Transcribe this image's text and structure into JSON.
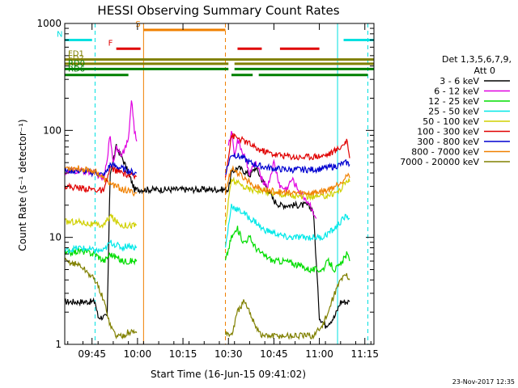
{
  "chart_data": {
    "type": "line",
    "title": "HESSI Observing Summary Count Rates",
    "xlabel": "Start Time (16-Jun-15 09:41:02)",
    "ylabel": "Count Rate (s⁻¹ detector⁻¹)",
    "x_range_minutes": [
      -5,
      97
    ],
    "x_ticks": [
      {
        "min": 4,
        "label": "09:45"
      },
      {
        "min": 19,
        "label": "10:00"
      },
      {
        "min": 34,
        "label": "10:15"
      },
      {
        "min": 49,
        "label": "10:30"
      },
      {
        "min": 64,
        "label": "10:45"
      },
      {
        "min": 79,
        "label": "11:00"
      },
      {
        "min": 94,
        "label": "11:15"
      }
    ],
    "y_scale": "log",
    "ylim": [
      1,
      1000
    ],
    "y_ticks": [
      {
        "v": 1,
        "label": "1"
      },
      {
        "v": 10,
        "label": "10"
      },
      {
        "v": 100,
        "label": "100"
      },
      {
        "v": 1000,
        "label": "1000"
      }
    ],
    "legend_title": [
      "Det 1,3,5,6,7,9,",
      "Att 0"
    ],
    "series": [
      {
        "name": "3 - 6 keV",
        "color": "#000000",
        "points": [
          [
            -5,
            2.5
          ],
          [
            0,
            2.5
          ],
          [
            5,
            2.5
          ],
          [
            6,
            1.8
          ],
          [
            9,
            1.8
          ],
          [
            10,
            40
          ],
          [
            12,
            70
          ],
          [
            14,
            55
          ],
          [
            16,
            40
          ],
          [
            18,
            28
          ],
          [
            19,
            28
          ],
          [
            47,
            28
          ],
          [
            49,
            28
          ],
          [
            50,
            40
          ],
          [
            52,
            45
          ],
          [
            54,
            42
          ],
          [
            56,
            38
          ],
          [
            58,
            45
          ],
          [
            60,
            35
          ],
          [
            62,
            28
          ],
          [
            64,
            22
          ],
          [
            66,
            20
          ],
          [
            70,
            20
          ],
          [
            75,
            20
          ],
          [
            77,
            18
          ],
          [
            79,
            1.8
          ],
          [
            81,
            1.5
          ],
          [
            84,
            1.8
          ],
          [
            86,
            2.5
          ],
          [
            89,
            2.5
          ]
        ]
      },
      {
        "name": "6 - 12 keV",
        "color": "#e000e0",
        "points": [
          [
            -5,
            40
          ],
          [
            0,
            42
          ],
          [
            5,
            40
          ],
          [
            8,
            35
          ],
          [
            10,
            90
          ],
          [
            11,
            50
          ],
          [
            12,
            70
          ],
          [
            14,
            60
          ],
          [
            16,
            80
          ],
          [
            17,
            200
          ],
          [
            18,
            100
          ],
          [
            19,
            70
          ],
          [
            49,
            70
          ],
          [
            50,
            100
          ],
          [
            51,
            60
          ],
          [
            52,
            80
          ],
          [
            54,
            60
          ],
          [
            56,
            40
          ],
          [
            58,
            50
          ],
          [
            60,
            35
          ],
          [
            62,
            30
          ],
          [
            64,
            50
          ],
          [
            66,
            30
          ],
          [
            68,
            28
          ],
          [
            70,
            35
          ],
          [
            72,
            28
          ],
          [
            76,
            20
          ],
          [
            78,
            15
          ]
        ]
      },
      {
        "name": "12 - 25 keV",
        "color": "#00dd00",
        "points": [
          [
            -5,
            7
          ],
          [
            0,
            7.5
          ],
          [
            5,
            7
          ],
          [
            8,
            6
          ],
          [
            10,
            7
          ],
          [
            12,
            6.5
          ],
          [
            14,
            6
          ],
          [
            16,
            6
          ],
          [
            18,
            6
          ],
          [
            19,
            6
          ],
          [
            48,
            6
          ],
          [
            50,
            10
          ],
          [
            52,
            12
          ],
          [
            54,
            9
          ],
          [
            56,
            10
          ],
          [
            58,
            8
          ],
          [
            60,
            7
          ],
          [
            64,
            6
          ],
          [
            68,
            6
          ],
          [
            72,
            5.5
          ],
          [
            76,
            5
          ],
          [
            80,
            5
          ],
          [
            82,
            6
          ],
          [
            84,
            5
          ],
          [
            86,
            5.5
          ],
          [
            88,
            7
          ],
          [
            89,
            6
          ]
        ]
      },
      {
        "name": "25 - 50 keV",
        "color": "#00e8e8",
        "points": [
          [
            -5,
            7.5
          ],
          [
            0,
            8
          ],
          [
            5,
            7.5
          ],
          [
            8,
            7.5
          ],
          [
            10,
            9
          ],
          [
            12,
            8.5
          ],
          [
            14,
            8
          ],
          [
            16,
            8.5
          ],
          [
            18,
            8
          ],
          [
            19,
            8
          ],
          [
            48,
            8
          ],
          [
            50,
            20
          ],
          [
            52,
            18
          ],
          [
            54,
            17
          ],
          [
            56,
            15
          ],
          [
            58,
            14
          ],
          [
            60,
            12
          ],
          [
            64,
            11
          ],
          [
            68,
            10
          ],
          [
            72,
            10
          ],
          [
            76,
            10
          ],
          [
            80,
            10
          ],
          [
            82,
            11
          ],
          [
            84,
            12
          ],
          [
            86,
            14
          ],
          [
            88,
            16
          ],
          [
            89,
            15
          ]
        ]
      },
      {
        "name": "50 - 100 keV",
        "color": "#d0d000",
        "points": [
          [
            -5,
            14
          ],
          [
            0,
            14
          ],
          [
            5,
            13
          ],
          [
            8,
            13
          ],
          [
            10,
            16
          ],
          [
            12,
            14
          ],
          [
            14,
            13
          ],
          [
            16,
            13
          ],
          [
            18,
            13
          ],
          [
            19,
            13
          ],
          [
            48,
            13
          ],
          [
            50,
            35
          ],
          [
            52,
            32
          ],
          [
            54,
            30
          ],
          [
            56,
            28
          ],
          [
            58,
            28
          ],
          [
            60,
            27
          ],
          [
            64,
            26
          ],
          [
            68,
            25
          ],
          [
            72,
            24
          ],
          [
            76,
            24
          ],
          [
            80,
            24
          ],
          [
            82,
            25
          ],
          [
            84,
            26
          ],
          [
            86,
            28
          ],
          [
            88,
            34
          ],
          [
            89,
            33
          ]
        ]
      },
      {
        "name": "100 - 300 keV",
        "color": "#e00000",
        "points": [
          [
            -5,
            30
          ],
          [
            0,
            29
          ],
          [
            5,
            28
          ],
          [
            8,
            27
          ],
          [
            10,
            45
          ],
          [
            12,
            42
          ],
          [
            14,
            40
          ],
          [
            16,
            38
          ],
          [
            18,
            37
          ],
          [
            19,
            37
          ],
          [
            48,
            37
          ],
          [
            50,
            90
          ],
          [
            52,
            85
          ],
          [
            54,
            80
          ],
          [
            56,
            75
          ],
          [
            58,
            68
          ],
          [
            60,
            65
          ],
          [
            64,
            60
          ],
          [
            68,
            58
          ],
          [
            72,
            56
          ],
          [
            76,
            57
          ],
          [
            80,
            58
          ],
          [
            82,
            60
          ],
          [
            84,
            64
          ],
          [
            86,
            70
          ],
          [
            88,
            80
          ],
          [
            89,
            55
          ]
        ]
      },
      {
        "name": "300 - 800 keV",
        "color": "#0000d0",
        "points": [
          [
            -5,
            42
          ],
          [
            0,
            42
          ],
          [
            5,
            40
          ],
          [
            8,
            38
          ],
          [
            10,
            48
          ],
          [
            12,
            46
          ],
          [
            14,
            44
          ],
          [
            16,
            42
          ],
          [
            18,
            40
          ],
          [
            19,
            40
          ],
          [
            48,
            40
          ],
          [
            50,
            60
          ],
          [
            52,
            58
          ],
          [
            54,
            55
          ],
          [
            56,
            50
          ],
          [
            58,
            48
          ],
          [
            60,
            46
          ],
          [
            64,
            44
          ],
          [
            68,
            43
          ],
          [
            72,
            43
          ],
          [
            76,
            43
          ],
          [
            80,
            44
          ],
          [
            82,
            45
          ],
          [
            84,
            46
          ],
          [
            86,
            48
          ],
          [
            88,
            50
          ],
          [
            89,
            48
          ]
        ]
      },
      {
        "name": "800 - 7000 keV",
        "color": "#f08000",
        "points": [
          [
            -5,
            45
          ],
          [
            0,
            44
          ],
          [
            5,
            42
          ],
          [
            8,
            35
          ],
          [
            10,
            32
          ],
          [
            12,
            30
          ],
          [
            14,
            28
          ],
          [
            16,
            27
          ],
          [
            18,
            26
          ],
          [
            19,
            26
          ],
          [
            48,
            26
          ],
          [
            50,
            45
          ],
          [
            52,
            40
          ],
          [
            54,
            36
          ],
          [
            56,
            33
          ],
          [
            58,
            30
          ],
          [
            60,
            28
          ],
          [
            64,
            27
          ],
          [
            68,
            26
          ],
          [
            72,
            26
          ],
          [
            76,
            26
          ],
          [
            80,
            27
          ],
          [
            82,
            28
          ],
          [
            84,
            30
          ],
          [
            86,
            33
          ],
          [
            88,
            38
          ],
          [
            89,
            36
          ]
        ]
      },
      {
        "name": "7000 - 20000 keV",
        "color": "#808000",
        "points": [
          [
            -5,
            6
          ],
          [
            0,
            5.5
          ],
          [
            5,
            4
          ],
          [
            7,
            3
          ],
          [
            9,
            2
          ],
          [
            10,
            1.5
          ],
          [
            12,
            1.2
          ],
          [
            14,
            1.2
          ],
          [
            16,
            1.3
          ],
          [
            19,
            1.3
          ],
          [
            48,
            1.3
          ],
          [
            50,
            1.2
          ],
          [
            52,
            2
          ],
          [
            54,
            2.5
          ],
          [
            56,
            2
          ],
          [
            58,
            1.5
          ],
          [
            60,
            1.2
          ],
          [
            62,
            1.2
          ],
          [
            66,
            1.2
          ],
          [
            70,
            1.2
          ],
          [
            74,
            1.2
          ],
          [
            77,
            1.2
          ],
          [
            80,
            1.5
          ],
          [
            82,
            2
          ],
          [
            84,
            3
          ],
          [
            86,
            4
          ],
          [
            88,
            4.5
          ],
          [
            89,
            4
          ]
        ]
      }
    ],
    "flag_bars": [
      {
        "label": "N",
        "color": "#00e0e0",
        "y": 700,
        "segments": [
          [
            -5,
            4
          ],
          [
            87,
            97
          ]
        ]
      },
      {
        "label": "F",
        "color": "#e00000",
        "y": 580,
        "segments": [
          [
            12,
            20
          ],
          [
            52,
            60
          ],
          [
            66,
            79
          ]
        ]
      },
      {
        "label": "S",
        "color": "#f08000",
        "y": 870,
        "segments": [
          [
            21,
            48
          ]
        ]
      },
      {
        "label": "FD1",
        "color": "#808000",
        "y": 460,
        "segments": [
          [
            -5,
            97
          ]
        ]
      },
      {
        "label": "FD2",
        "color": "#808000",
        "y": 420,
        "segments": [
          [
            -5,
            49
          ],
          [
            51,
            97
          ]
        ]
      },
      {
        "label": "RD0",
        "color": "#008000",
        "y": 375,
        "segments": [
          [
            -5,
            49
          ],
          [
            51,
            97
          ]
        ]
      },
      {
        "label": "RD6",
        "color": "#008000",
        "y": 330,
        "segments": [
          [
            -5,
            16
          ],
          [
            50,
            57
          ],
          [
            59,
            95
          ]
        ]
      }
    ],
    "vertical_markers": [
      {
        "min": -5,
        "style": "solid",
        "color": "#00e0e0"
      },
      {
        "min": 5,
        "style": "dashed",
        "color": "#00e0e0"
      },
      {
        "min": 21,
        "style": "solid",
        "color": "#f08000"
      },
      {
        "min": 48,
        "style": "dashed",
        "color": "#f08000"
      },
      {
        "min": 85,
        "style": "solid",
        "color": "#00e0e0"
      },
      {
        "min": 95,
        "style": "dashed",
        "color": "#00e0e0"
      }
    ]
  },
  "footer_date": "23-Nov-2017 12:35"
}
